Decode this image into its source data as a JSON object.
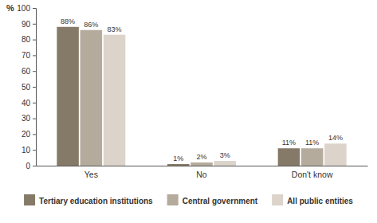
{
  "chart_data": {
    "type": "bar",
    "y_label": "%",
    "categories": [
      "Yes",
      "No",
      "Don't know"
    ],
    "series": [
      {
        "name": "Tertiary education institutions",
        "color": "#857a67",
        "values": [
          88,
          1,
          11
        ],
        "value_labels": [
          "88%",
          "1%",
          "11%"
        ]
      },
      {
        "name": "Central government",
        "color": "#b4ab9c",
        "values": [
          86,
          2,
          11
        ],
        "value_labels": [
          "86%",
          "2%",
          "11%"
        ]
      },
      {
        "name": "All public entities",
        "color": "#dcd3ca",
        "values": [
          83,
          3,
          14
        ],
        "value_labels": [
          "83%",
          "3%",
          "14%"
        ]
      }
    ],
    "ylim": [
      0,
      100
    ],
    "yticks": [
      0,
      10,
      20,
      30,
      40,
      50,
      60,
      70,
      80,
      90,
      100
    ],
    "data_labels": true,
    "legend": "bottom",
    "grid": false
  }
}
